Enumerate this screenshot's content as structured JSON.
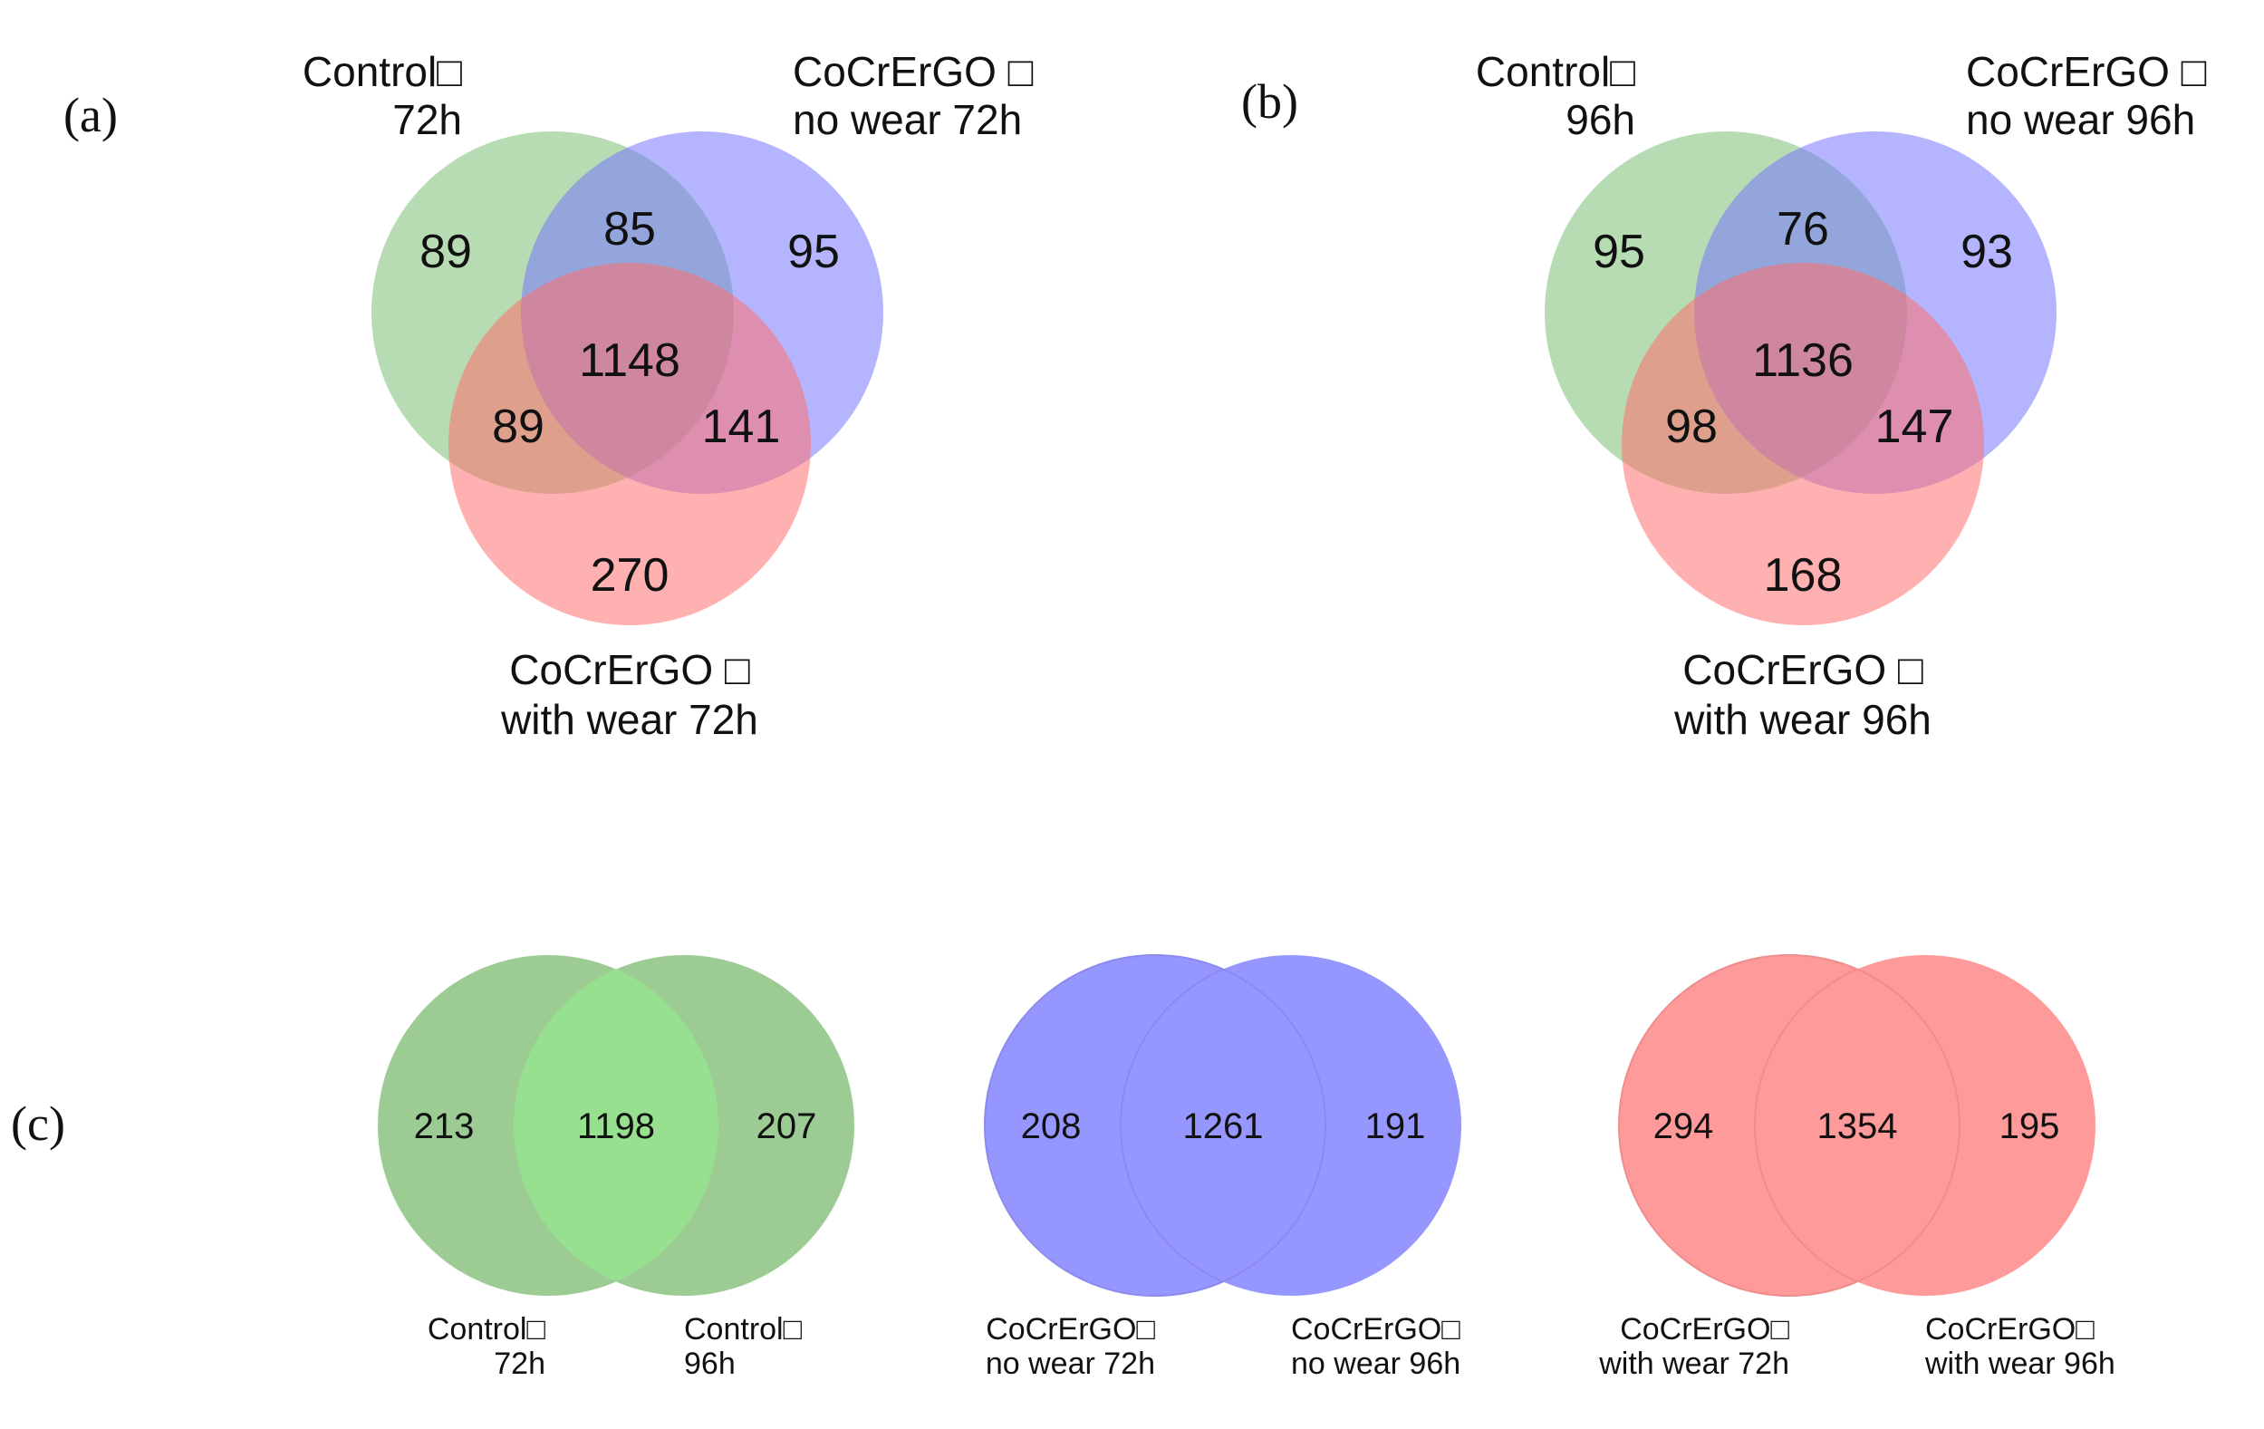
{
  "colors": {
    "green": "#7cbd72",
    "blue": "#7878ff",
    "red": "#ff6f6f",
    "overlap_green": "#8fe08a",
    "text": "#111111"
  },
  "panels": {
    "a": "(a)",
    "b": "(b)",
    "c": "(c)"
  },
  "venn_a": {
    "set1": [
      "Control□",
      "72h"
    ],
    "set2": [
      "CoCrErGO □",
      "no wear 72h"
    ],
    "set3": [
      "CoCrErGO □",
      "with wear 72h"
    ],
    "only1": "89",
    "only2": "95",
    "only3": "270",
    "s12": "85",
    "s13": "89",
    "s23": "141",
    "s123": "1148"
  },
  "venn_b": {
    "set1": [
      "Control□",
      "96h"
    ],
    "set2": [
      "CoCrErGO □",
      "no wear 96h"
    ],
    "set3": [
      "CoCrErGO □",
      "with wear 96h"
    ],
    "only1": "95",
    "only2": "93",
    "only3": "168",
    "s12": "76",
    "s13": "98",
    "s23": "147",
    "s123": "1136"
  },
  "venn_c": [
    {
      "left_label": [
        "Control□",
        "72h"
      ],
      "right_label": [
        "Control□",
        "96h"
      ],
      "left": "213",
      "both": "1198",
      "right": "207",
      "color": "green"
    },
    {
      "left_label": [
        "CoCrErGO□",
        "no wear 72h"
      ],
      "right_label": [
        "CoCrErGO□",
        "no wear 96h"
      ],
      "left": "208",
      "both": "1261",
      "right": "191",
      "color": "blue"
    },
    {
      "left_label": [
        "CoCrErGO□",
        "with wear 72h"
      ],
      "right_label": [
        "CoCrErGO□",
        "with wear 96h"
      ],
      "left": "294",
      "both": "1354",
      "right": "195",
      "color": "red"
    }
  ]
}
